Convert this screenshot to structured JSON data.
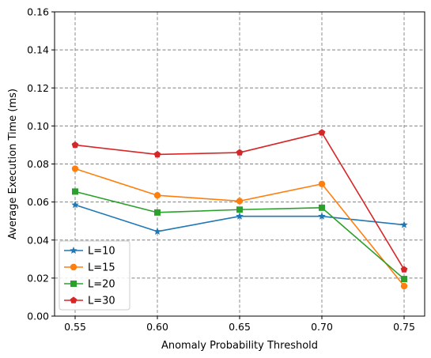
{
  "chart_data": {
    "type": "line",
    "title": "",
    "xlabel": "Anomaly Probability Threshold",
    "ylabel": "Average Execution Time  (ms)",
    "x": [
      0.55,
      0.6,
      0.65,
      0.7,
      0.75
    ],
    "x_tick_labels": [
      "0.55",
      "0.60",
      "0.65",
      "0.70",
      "0.75"
    ],
    "xlim": [
      0.5375,
      0.7625
    ],
    "ylim": [
      0.0,
      0.16
    ],
    "y_ticks": [
      0.0,
      0.02,
      0.04,
      0.06,
      0.08,
      0.1,
      0.12,
      0.14,
      0.16
    ],
    "y_tick_labels": [
      "0.00",
      "0.02",
      "0.04",
      "0.06",
      "0.08",
      "0.10",
      "0.12",
      "0.14",
      "0.16"
    ],
    "grid": true,
    "legend_position": "lower-left",
    "series": [
      {
        "name": "L=10",
        "color": "#1f77b4",
        "marker": "star",
        "values": [
          0.0585,
          0.0445,
          0.0525,
          0.0525,
          0.048
        ]
      },
      {
        "name": "L=15",
        "color": "#ff7f0e",
        "marker": "circle",
        "values": [
          0.0775,
          0.0635,
          0.0605,
          0.0695,
          0.0158
        ]
      },
      {
        "name": "L=20",
        "color": "#2ca02c",
        "marker": "square",
        "values": [
          0.0655,
          0.0545,
          0.056,
          0.057,
          0.0195
        ]
      },
      {
        "name": "L=30",
        "color": "#d62728",
        "marker": "pentagon",
        "values": [
          0.09,
          0.085,
          0.086,
          0.0965,
          0.0245
        ]
      }
    ]
  }
}
